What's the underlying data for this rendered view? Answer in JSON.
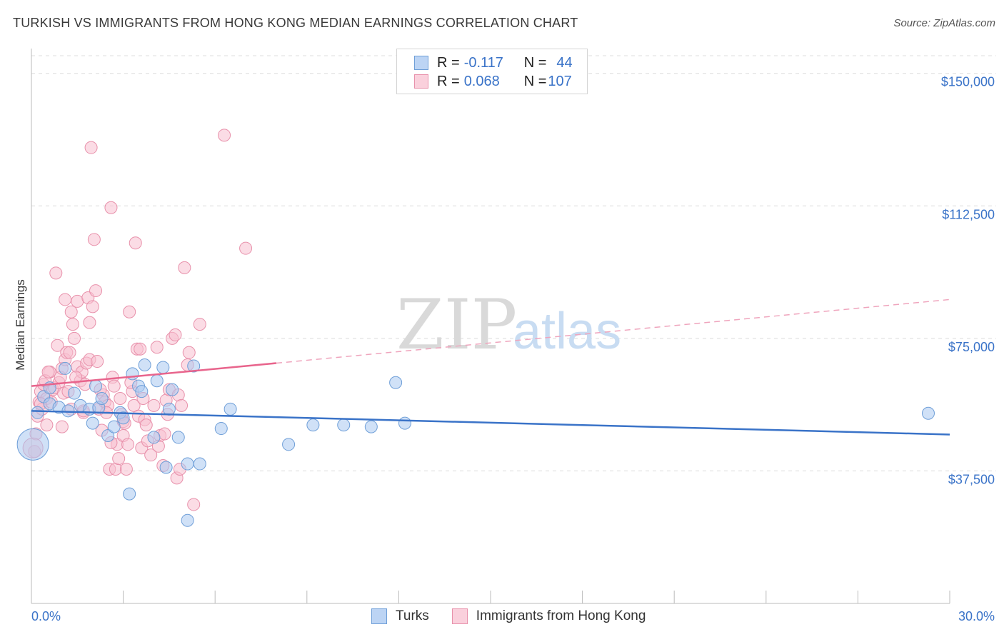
{
  "title": "TURKISH VS IMMIGRANTS FROM HONG KONG MEDIAN EARNINGS CORRELATION CHART",
  "source": "Source: ZipAtlas.com",
  "watermark": {
    "zip": "ZIP",
    "atlas": "atlas"
  },
  "legend": {
    "r_label": "R =",
    "n_label": "N =",
    "rows": [
      {
        "r": "-0.117",
        "n": "44",
        "color": "#a9c8f0",
        "border": "#6f9fd8"
      },
      {
        "r": "0.068",
        "n": "107",
        "color": "#f8c0d0",
        "border": "#e891ab"
      }
    ]
  },
  "bottom_legend": [
    "Turks",
    "Immigrants from Hong Kong"
  ],
  "colors": {
    "blue": "#3a73c8",
    "pink": "#e8648c",
    "blue_fill": "#a9c8f0",
    "pink_fill": "#f8c0d0"
  },
  "chart_data": {
    "type": "scatter",
    "title": "TURKISH VS IMMIGRANTS FROM HONG KONG MEDIAN EARNINGS CORRELATION CHART",
    "xlabel": "",
    "ylabel": "Median Earnings",
    "xlim": [
      0,
      30
    ],
    "ylim": [
      0,
      155000
    ],
    "x_tick_labels": [
      "0.0%",
      "30.0%"
    ],
    "y_ticks": [
      37500,
      75000,
      112500,
      150000
    ],
    "y_tick_labels": [
      "$37,500",
      "$75,000",
      "$112,500",
      "$150,000"
    ],
    "series": [
      {
        "name": "Turks",
        "color": "#6f9fd8",
        "trend": {
          "x": [
            0,
            30
          ],
          "y": [
            54500,
            47800
          ],
          "style": "solid"
        },
        "points": [
          [
            0.05,
            45000
          ],
          [
            0.2,
            54000
          ],
          [
            0.4,
            58500
          ],
          [
            0.6,
            56500
          ],
          [
            0.9,
            55500
          ],
          [
            1.1,
            66500
          ],
          [
            1.2,
            54500
          ],
          [
            1.4,
            59500
          ],
          [
            1.6,
            56000
          ],
          [
            1.9,
            55000
          ],
          [
            2.0,
            51000
          ],
          [
            2.1,
            61500
          ],
          [
            2.2,
            55500
          ],
          [
            2.3,
            58000
          ],
          [
            2.5,
            47500
          ],
          [
            2.7,
            50000
          ],
          [
            2.9,
            54000
          ],
          [
            3.0,
            52500
          ],
          [
            3.3,
            65000
          ],
          [
            3.5,
            61500
          ],
          [
            3.6,
            60000
          ],
          [
            3.2,
            31000
          ],
          [
            3.7,
            67500
          ],
          [
            4.0,
            47000
          ],
          [
            4.1,
            63000
          ],
          [
            4.3,
            66800
          ],
          [
            4.4,
            38500
          ],
          [
            4.5,
            55000
          ],
          [
            4.6,
            60500
          ],
          [
            4.8,
            47000
          ],
          [
            5.1,
            39500
          ],
          [
            5.3,
            67200
          ],
          [
            5.5,
            39500
          ],
          [
            5.1,
            23500
          ],
          [
            6.2,
            49500
          ],
          [
            6.5,
            55000
          ],
          [
            8.4,
            45000
          ],
          [
            9.2,
            50500
          ],
          [
            10.2,
            50500
          ],
          [
            11.1,
            50000
          ],
          [
            11.9,
            62500
          ],
          [
            12.2,
            51000
          ],
          [
            29.3,
            53800
          ],
          [
            0.6,
            61000
          ]
        ]
      },
      {
        "name": "Immigrants from Hong Kong",
        "color": "#e891ab",
        "trend": {
          "x": [
            0,
            8,
            30
          ],
          "y": [
            61500,
            68000,
            86000
          ],
          "style": "solid-then-dashed"
        },
        "points": [
          [
            0.1,
            43000
          ],
          [
            0.15,
            48000
          ],
          [
            0.2,
            53000
          ],
          [
            0.25,
            57000
          ],
          [
            0.3,
            60000
          ],
          [
            0.35,
            55000
          ],
          [
            0.4,
            62000
          ],
          [
            0.5,
            58000
          ],
          [
            0.5,
            50500
          ],
          [
            0.6,
            65500
          ],
          [
            0.65,
            57000
          ],
          [
            0.7,
            60500
          ],
          [
            0.75,
            61000
          ],
          [
            0.8,
            93500
          ],
          [
            0.85,
            73000
          ],
          [
            0.9,
            62500
          ],
          [
            0.95,
            64000
          ],
          [
            1.0,
            66500
          ],
          [
            1.0,
            50000
          ],
          [
            1.05,
            59500
          ],
          [
            1.1,
            69000
          ],
          [
            1.1,
            86000
          ],
          [
            1.15,
            71000
          ],
          [
            1.2,
            60000
          ],
          [
            1.3,
            82500
          ],
          [
            1.3,
            55000
          ],
          [
            1.35,
            79000
          ],
          [
            1.4,
            75000
          ],
          [
            1.5,
            85500
          ],
          [
            1.5,
            67000
          ],
          [
            1.6,
            63000
          ],
          [
            1.65,
            65500
          ],
          [
            1.7,
            54000
          ],
          [
            1.75,
            62000
          ],
          [
            1.8,
            68000
          ],
          [
            1.85,
            86500
          ],
          [
            1.9,
            79500
          ],
          [
            1.9,
            69000
          ],
          [
            1.95,
            129000
          ],
          [
            2.0,
            84000
          ],
          [
            2.05,
            103000
          ],
          [
            2.1,
            88500
          ],
          [
            2.15,
            68500
          ],
          [
            2.2,
            55000
          ],
          [
            2.3,
            49000
          ],
          [
            2.35,
            59000
          ],
          [
            2.4,
            57000
          ],
          [
            2.5,
            56000
          ],
          [
            2.55,
            38000
          ],
          [
            2.6,
            112000
          ],
          [
            2.65,
            64000
          ],
          [
            2.7,
            61500
          ],
          [
            2.75,
            38000
          ],
          [
            2.8,
            45000
          ],
          [
            2.85,
            41000
          ],
          [
            2.9,
            58000
          ],
          [
            2.95,
            53500
          ],
          [
            3.0,
            51500
          ],
          [
            3.0,
            47500
          ],
          [
            3.05,
            51000
          ],
          [
            3.1,
            38000
          ],
          [
            3.2,
            82500
          ],
          [
            3.3,
            60000
          ],
          [
            3.35,
            56000
          ],
          [
            3.4,
            102000
          ],
          [
            3.45,
            72000
          ],
          [
            3.5,
            53000
          ],
          [
            3.55,
            72000
          ],
          [
            3.6,
            44000
          ],
          [
            3.65,
            58000
          ],
          [
            3.7,
            52000
          ],
          [
            3.8,
            46000
          ],
          [
            3.9,
            42000
          ],
          [
            4.0,
            56000
          ],
          [
            4.1,
            72500
          ],
          [
            4.2,
            47500
          ],
          [
            4.3,
            39000
          ],
          [
            4.35,
            48000
          ],
          [
            4.4,
            57500
          ],
          [
            4.5,
            60500
          ],
          [
            4.6,
            75000
          ],
          [
            4.7,
            76000
          ],
          [
            4.75,
            35500
          ],
          [
            4.8,
            59000
          ],
          [
            4.85,
            38000
          ],
          [
            4.9,
            56000
          ],
          [
            5.0,
            95000
          ],
          [
            5.1,
            67500
          ],
          [
            5.15,
            71000
          ],
          [
            5.3,
            28000
          ],
          [
            5.5,
            79000
          ],
          [
            6.3,
            132500
          ],
          [
            7.0,
            100500
          ],
          [
            0.3,
            56500
          ],
          [
            0.45,
            63000
          ],
          [
            0.55,
            65500
          ],
          [
            1.25,
            71000
          ],
          [
            1.45,
            64000
          ],
          [
            1.7,
            54500
          ],
          [
            2.25,
            60500
          ],
          [
            2.45,
            54000
          ],
          [
            2.6,
            45500
          ],
          [
            3.15,
            45000
          ],
          [
            3.25,
            62500
          ],
          [
            3.75,
            50500
          ],
          [
            4.15,
            44500
          ],
          [
            4.45,
            53500
          ]
        ]
      }
    ]
  }
}
